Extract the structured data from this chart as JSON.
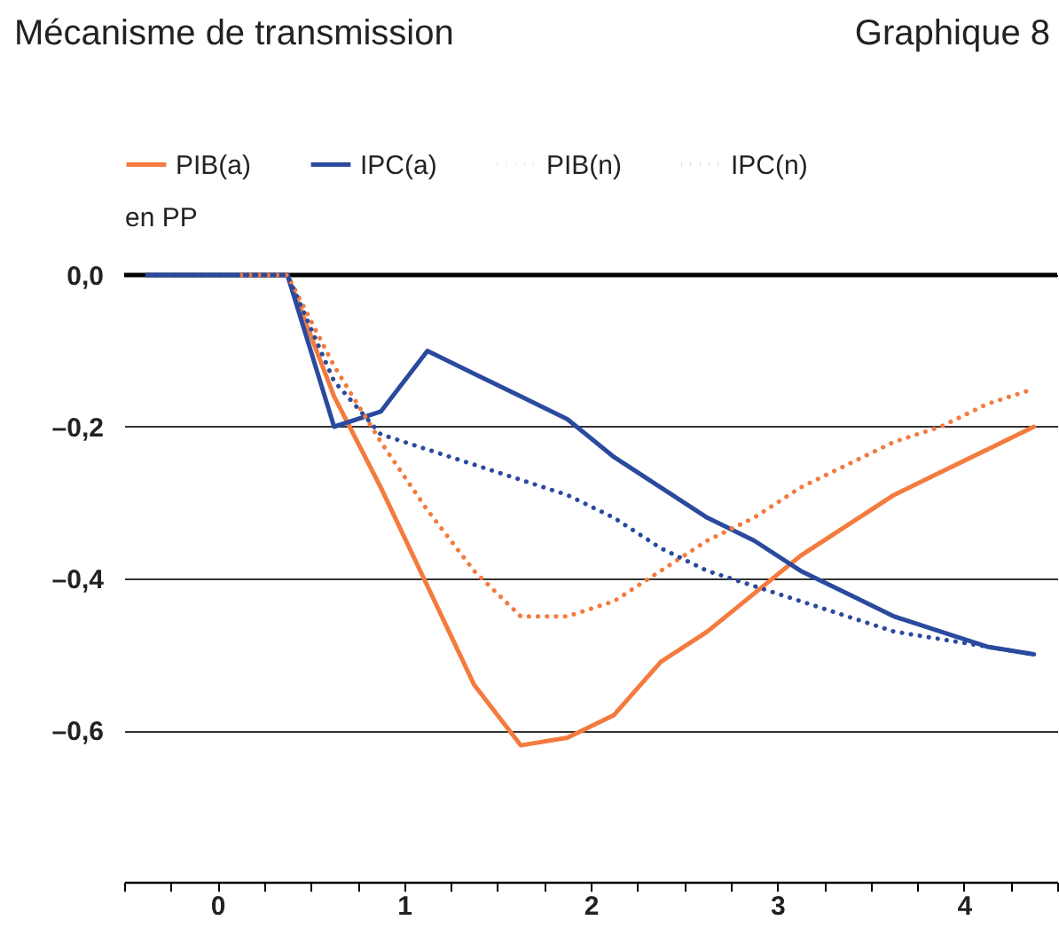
{
  "chart_data": {
    "type": "line",
    "title": "Mécanisme de transmission",
    "annotations": [
      "Graphique 8"
    ],
    "ylabel": "en PP",
    "x": [
      -0.375,
      -0.125,
      0.125,
      0.375,
      0.625,
      0.875,
      1.125,
      1.375,
      1.625,
      1.875,
      2.125,
      2.375,
      2.625,
      2.875,
      3.125,
      3.375,
      3.625,
      3.875,
      4.125,
      4.375
    ],
    "series": [
      {
        "name": "PIB(a)",
        "color": "#f47b3e",
        "line_style": "solid",
        "values": [
          null,
          null,
          0,
          0,
          -0.16,
          -0.28,
          -0.41,
          -0.54,
          -0.62,
          -0.61,
          -0.58,
          -0.51,
          -0.47,
          -0.42,
          -0.37,
          -0.33,
          -0.29,
          -0.26,
          -0.23,
          -0.2
        ]
      },
      {
        "name": "IPC(a)",
        "color": "#2a4a9e",
        "line_style": "solid",
        "values": [
          0,
          0,
          0,
          0,
          -0.2,
          -0.18,
          -0.1,
          -0.13,
          -0.16,
          -0.19,
          -0.24,
          -0.28,
          -0.32,
          -0.35,
          -0.39,
          -0.42,
          -0.45,
          -0.47,
          -0.49,
          -0.5
        ]
      },
      {
        "name": "PIB(n)",
        "color": "#f47b3e",
        "line_style": "dotted",
        "values": [
          null,
          null,
          0,
          0,
          -0.12,
          -0.22,
          -0.31,
          -0.39,
          -0.45,
          -0.45,
          -0.43,
          -0.39,
          -0.35,
          -0.32,
          -0.28,
          -0.25,
          -0.22,
          -0.2,
          -0.17,
          -0.15
        ]
      },
      {
        "name": "IPC(n)",
        "color": "#2a4a9e",
        "line_style": "dotted",
        "values": [
          0,
          0,
          0,
          0,
          -0.14,
          -0.21,
          -0.23,
          -0.25,
          -0.27,
          -0.29,
          -0.32,
          -0.36,
          -0.39,
          -0.41,
          -0.43,
          -0.45,
          -0.47,
          -0.48,
          -0.49,
          -0.5
        ]
      }
    ],
    "xlim": [
      -0.5,
      4.5
    ],
    "xticks": [
      {
        "value": -0.5,
        "label": null
      },
      {
        "value": -0.25,
        "label": null
      },
      0,
      {
        "value": 0.25,
        "label": null
      },
      {
        "value": 0.5,
        "label": null
      },
      {
        "value": 0.75,
        "label": null
      },
      1,
      {
        "value": 1.25,
        "label": null
      },
      {
        "value": 1.5,
        "label": null
      },
      {
        "value": 1.75,
        "label": null
      },
      2,
      {
        "value": 2.25,
        "label": null
      },
      {
        "value": 2.5,
        "label": null
      },
      {
        "value": 2.75,
        "label": null
      },
      3,
      {
        "value": 3.25,
        "label": null
      },
      {
        "value": 3.5,
        "label": null
      },
      {
        "value": 3.75,
        "label": null
      },
      4,
      {
        "value": 4.25,
        "label": null
      },
      {
        "value": 4.5,
        "label": null
      }
    ],
    "ylim": [
      -0.8,
      0
    ],
    "yticks": [
      {
        "value": 0,
        "label": "0,0"
      },
      {
        "value": -0.2,
        "label": "–0,2"
      },
      {
        "value": -0.4,
        "label": "–0,4"
      },
      {
        "value": -0.6,
        "label": "–0,6"
      }
    ],
    "ref_lines": [
      {
        "axis": "y",
        "value": 0,
        "color": "#000000"
      }
    ],
    "grid": "y",
    "legend": "top",
    "marker": "none"
  }
}
